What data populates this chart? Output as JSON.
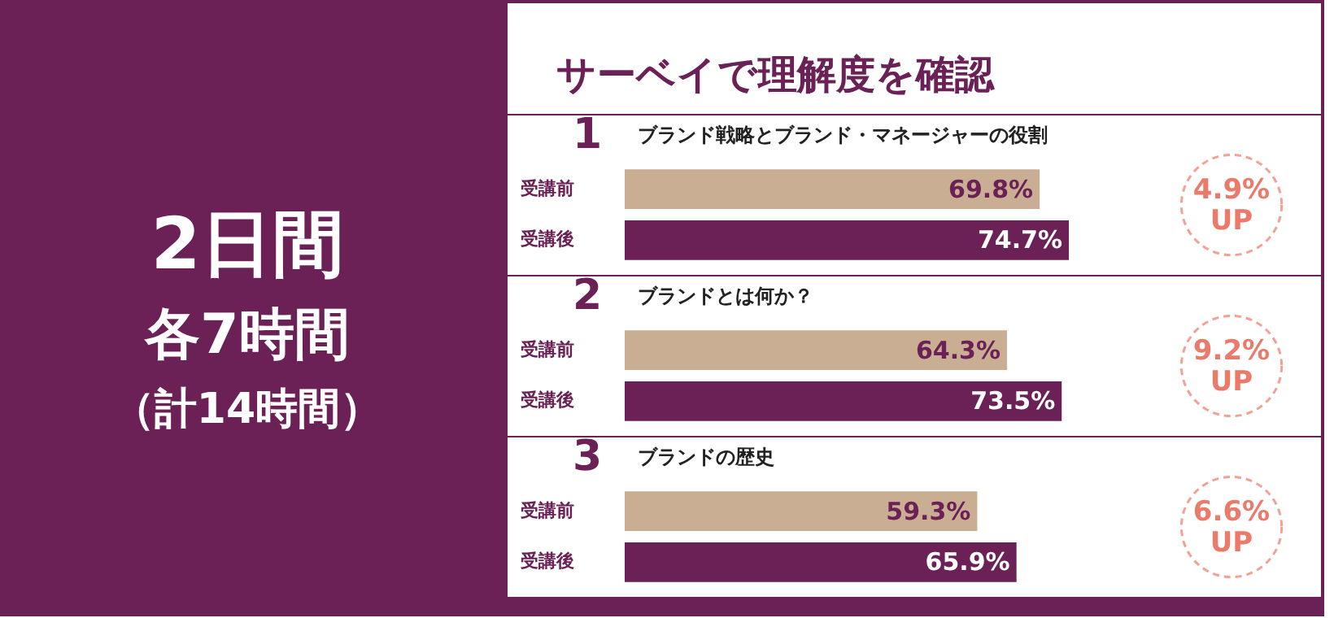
{
  "chart_data": [
    {
      "type": "other",
      "annotations": [
        "2日間",
        "各7時間",
        "（計14時間）"
      ]
    },
    {
      "type": "other",
      "title": "サーベイで理解度を確認"
    },
    {
      "type": "bar",
      "orientation": "horizontal",
      "title": "1",
      "subtitle": "ブランド戦略とブランド・マネージャーの役割",
      "categories": [
        "受講前",
        "受講後"
      ],
      "values": [
        69.8,
        74.7
      ],
      "colors": [
        "#c9ae93",
        "#6b2156"
      ],
      "value_labels": [
        "69.8%",
        "74.7%"
      ],
      "tick_labels": "y",
      "annotations": [
        "4.9%\nUP"
      ]
    },
    {
      "type": "bar",
      "orientation": "horizontal",
      "title": "2",
      "subtitle": "ブランドとは何か？",
      "categories": [
        "受講前",
        "受講後"
      ],
      "values": [
        64.3,
        73.5
      ],
      "colors": [
        "#c9ae93",
        "#6b2156"
      ],
      "value_labels": [
        "64.3%",
        "73.5%"
      ],
      "tick_labels": "y",
      "annotations": [
        "9.2%\nUP"
      ]
    },
    {
      "type": "bar",
      "orientation": "horizontal",
      "title": "3",
      "subtitle": "ブランドの歴史",
      "categories": [
        "受講前",
        "受講後"
      ],
      "values": [
        59.3,
        65.9
      ],
      "colors": [
        "#c9ae93",
        "#6b2156"
      ],
      "value_labels": [
        "59.3%",
        "65.9%"
      ],
      "tick_labels": "y",
      "annotations": [
        "6.6%\nUP"
      ]
    }
  ]
}
